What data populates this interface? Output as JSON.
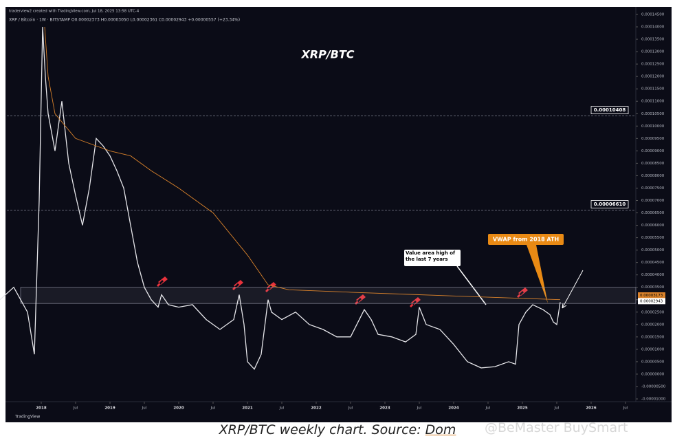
{
  "chart_data": {
    "type": "line",
    "title": "XRP/BTC",
    "header": "traderview2 created with TradingView.com, Jul 18, 2025 13:58 UTC-4",
    "legend_line": "XRP / Bitcoin · 1W · BITSTAMP  O0.00002373 H0.00003050 L0.00002361 C0.00002943 +0.00000557 (+23.34%)",
    "brand": "TradingView",
    "caption": "XRP/BTC weekly chart. Source:",
    "source": "Dom",
    "watermark": "@BeMaster BuySmart",
    "xlim": [
      2017.5,
      2026.65
    ],
    "xticks": [
      2018,
      {
        "value": 2018.5,
        "label": "Jul"
      },
      2019,
      {
        "value": 2019.5,
        "label": "Jul"
      },
      2020,
      {
        "value": 2020.5,
        "label": "Jul"
      },
      2021,
      {
        "value": 2021.5,
        "label": "Jul"
      },
      2022,
      {
        "value": 2022.5,
        "label": "Jul"
      },
      2023,
      {
        "value": 2023.5,
        "label": "Jul"
      },
      2024,
      {
        "value": 2024.5,
        "label": "Jul"
      },
      2025,
      {
        "value": 2025.5,
        "label": "Jul"
      },
      2026,
      {
        "value": 2026.5,
        "label": "Jul"
      }
    ],
    "ylim": [
      -1e-05,
      0.000145
    ],
    "yticks": [
      {
        "value": -1e-05,
        "label": "-0.00001000"
      },
      {
        "value": -5e-06,
        "label": "-0.00000500"
      },
      {
        "value": 0,
        "label": "0.00000000"
      },
      {
        "value": 5e-06,
        "label": "0.00000500"
      },
      {
        "value": 1e-05,
        "label": "0.00001000"
      },
      {
        "value": 1.5e-05,
        "label": "0.00001500"
      },
      {
        "value": 2e-05,
        "label": "0.00002000"
      },
      {
        "value": 2.5e-05,
        "label": "0.00002500"
      },
      {
        "value": 3e-05,
        "label": "0.00003000"
      },
      {
        "value": 3.5e-05,
        "label": "0.00003500"
      },
      {
        "value": 4e-05,
        "label": "0.00004000"
      },
      {
        "value": 4.5e-05,
        "label": "0.00004500"
      },
      {
        "value": 5e-05,
        "label": "0.00005000"
      },
      {
        "value": 5.5e-05,
        "label": "0.00005500"
      },
      {
        "value": 6e-05,
        "label": "0.00006000"
      },
      {
        "value": 6.5e-05,
        "label": "0.00006500"
      },
      {
        "value": 7e-05,
        "label": "0.00007000"
      },
      {
        "value": 7.5e-05,
        "label": "0.00007500"
      },
      {
        "value": 8e-05,
        "label": "0.00008000"
      },
      {
        "value": 8.5e-05,
        "label": "0.00008500"
      },
      {
        "value": 9e-05,
        "label": "0.00009000"
      },
      {
        "value": 9.5e-05,
        "label": "0.00009500"
      },
      {
        "value": 0.0001,
        "label": "0.00010000"
      },
      {
        "value": 0.000105,
        "label": "0.00010500"
      },
      {
        "value": 0.00011,
        "label": "0.00011000"
      },
      {
        "value": 0.000115,
        "label": "0.00011500"
      },
      {
        "value": 0.00012,
        "label": "0.00012000"
      },
      {
        "value": 0.000125,
        "label": "0.00012500"
      },
      {
        "value": 0.00013,
        "label": "0.00013000"
      },
      {
        "value": 0.000135,
        "label": "0.00013500"
      },
      {
        "value": 0.00014,
        "label": "0.00014000"
      },
      {
        "value": 0.000145,
        "label": "0.00014500"
      }
    ],
    "grid": false,
    "series": [
      {
        "name": "XRP / Bitcoin",
        "color": "#e6e6ea",
        "x": [
          2017.4,
          2017.6,
          2017.8,
          2017.9,
          2017.97,
          2018.02,
          2018.06,
          2018.1,
          2018.2,
          2018.3,
          2018.4,
          2018.5,
          2018.6,
          2018.7,
          2018.8,
          2018.9,
          2019.0,
          2019.1,
          2019.2,
          2019.3,
          2019.4,
          2019.5,
          2019.6,
          2019.7,
          2019.75,
          2019.85,
          2020.0,
          2020.2,
          2020.4,
          2020.6,
          2020.8,
          2020.88,
          2020.95,
          2021.0,
          2021.1,
          2021.2,
          2021.3,
          2021.35,
          2021.5,
          2021.7,
          2021.9,
          2022.1,
          2022.3,
          2022.5,
          2022.7,
          2022.8,
          2022.9,
          2023.1,
          2023.3,
          2023.45,
          2023.5,
          2023.6,
          2023.8,
          2024.0,
          2024.2,
          2024.4,
          2024.6,
          2024.8,
          2024.9,
          2024.95,
          2025.05,
          2025.15,
          2025.3,
          2025.4,
          2025.45,
          2025.5,
          2025.55
        ],
        "values": [
          3e-05,
          3.5e-05,
          2.5e-05,
          8e-06,
          7e-05,
          0.00014,
          0.00012,
          0.000105,
          9e-05,
          0.00011,
          8.5e-05,
          7.2e-05,
          6e-05,
          7.5e-05,
          9.5e-05,
          9.2e-05,
          8.8e-05,
          8.2e-05,
          7.5e-05,
          6e-05,
          4.5e-05,
          3.5e-05,
          3e-05,
          2.7e-05,
          3.2e-05,
          2.8e-05,
          2.7e-05,
          2.8e-05,
          2.2e-05,
          1.8e-05,
          2.2e-05,
          3.2e-05,
          2e-05,
          5e-06,
          2e-06,
          8e-06,
          3e-05,
          2.5e-05,
          2.2e-05,
          2.5e-05,
          2e-05,
          1.8e-05,
          1.5e-05,
          1.5e-05,
          2.6e-05,
          2.2e-05,
          1.6e-05,
          1.5e-05,
          1.3e-05,
          1.6e-05,
          2.7e-05,
          2e-05,
          1.8e-05,
          1.2e-05,
          5e-06,
          2.5e-06,
          3e-06,
          5e-06,
          4e-06,
          2e-05,
          2.5e-05,
          2.8e-05,
          2.6e-05,
          2.4e-05,
          2.1e-05,
          2e-05,
          2.9e-05
        ]
      },
      {
        "name": "VWAP from 2018 ATH",
        "color": "#d9822b",
        "x": [
          2018.05,
          2018.1,
          2018.2,
          2018.5,
          2019.0,
          2019.3,
          2019.6,
          2020.0,
          2020.5,
          2021.0,
          2021.3,
          2021.6,
          2022.5,
          2023.5,
          2024.5,
          2025.55
        ],
        "values": [
          0.00014,
          0.00012,
          0.000105,
          9.5e-05,
          9e-05,
          8.8e-05,
          8.2e-05,
          7.5e-05,
          6.5e-05,
          4.8e-05,
          3.6e-05,
          3.4e-05,
          3.3e-05,
          3.2e-05,
          3.1e-05,
          3e-05
        ]
      }
    ],
    "levels": [
      {
        "value": 0.00010408,
        "label": "0.00010408"
      },
      {
        "value": 6.61e-05,
        "label": "0.00006610"
      }
    ],
    "price_badges": [
      {
        "value": 3.173e-05,
        "label": "0.00003173",
        "color": "#d9822b"
      },
      {
        "value": 2.943e-05,
        "label": "0.00002943",
        "color": "#ffffff"
      }
    ],
    "value_area": [
      2.85e-05,
      3.5e-05
    ],
    "annotations": [
      "Value area high of the last 7 years",
      "VWAP from 2018 ATH"
    ]
  }
}
